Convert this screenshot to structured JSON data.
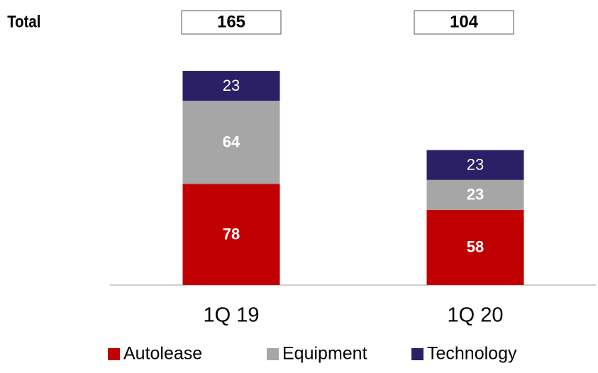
{
  "chart_data": {
    "type": "stacked_bar",
    "total_label": "Total",
    "categories": [
      "1Q 19",
      "1Q 20"
    ],
    "totals": [
      165,
      104
    ],
    "series": [
      {
        "name": "Autolease",
        "color": "#c00000",
        "values": [
          78,
          58
        ]
      },
      {
        "name": "Equipment",
        "color": "#a6a6a6",
        "values": [
          64,
          23
        ]
      },
      {
        "name": "Technology",
        "color": "#2b1f66",
        "values": [
          23,
          23
        ]
      }
    ]
  }
}
